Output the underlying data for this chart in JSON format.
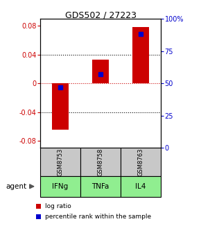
{
  "title": "GDS502 / 27223",
  "categories": [
    "IFNg",
    "TNFa",
    "IL4"
  ],
  "sample_ids": [
    "GSM8753",
    "GSM8758",
    "GSM8763"
  ],
  "log_ratios": [
    -0.065,
    0.033,
    0.078
  ],
  "percentile_ranks": [
    47.0,
    57.0,
    88.0
  ],
  "ylim_left": [
    -0.09,
    0.09
  ],
  "ylim_right": [
    0,
    100
  ],
  "bar_color": "#cc0000",
  "percentile_color": "#0000cc",
  "zero_line_color": "#cc0000",
  "grid_line_color": "#000000",
  "agent_label": "agent",
  "sample_bg": "#c8c8c8",
  "category_bg": "#90ee90",
  "left_tick_color": "#cc0000",
  "right_tick_color": "#0000cc",
  "left_ticks": [
    -0.08,
    -0.04,
    0,
    0.04,
    0.08
  ],
  "right_ticks": [
    0,
    25,
    50,
    75,
    100
  ],
  "right_tick_labels": [
    "0",
    "25",
    "50",
    "75",
    "100%"
  ],
  "legend_log_label": "log ratio",
  "legend_pct_label": "percentile rank within the sample",
  "bar_width": 0.4
}
